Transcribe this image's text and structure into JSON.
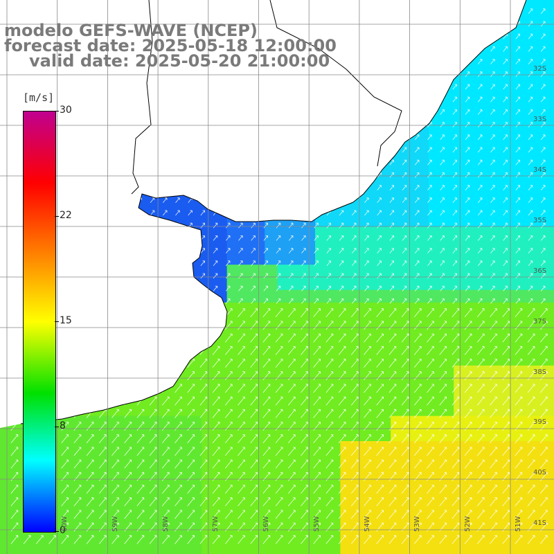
{
  "title": {
    "line1": "modelo GEFS-WAVE (NCEP)",
    "line2": "forecast date: 2025-05-18 12:00:00",
    "line3": "valid date: 2025-05-20 21:00:00"
  },
  "legend": {
    "unit": "[m/s]",
    "ticks": [
      "30",
      "22",
      "15",
      "8",
      "0"
    ],
    "colors": [
      "#c00090",
      "#ff0000",
      "#ff7a00",
      "#ffff00",
      "#00e000",
      "#00ffff",
      "#0000ff"
    ]
  },
  "lat_labels": [
    "32S",
    "33S",
    "34S",
    "35S",
    "36S",
    "37S",
    "38S",
    "39S",
    "40S",
    "41S"
  ],
  "lon_labels": [
    "60W",
    "59W",
    "58W",
    "57W",
    "56W",
    "55W",
    "54W",
    "53W",
    "52W",
    "51W"
  ],
  "map": {
    "variable": "wind speed",
    "arrow_direction": "toward northeast",
    "land_color": "#ffffff",
    "grid_color": "#888888",
    "coast_color": "#000000"
  }
}
